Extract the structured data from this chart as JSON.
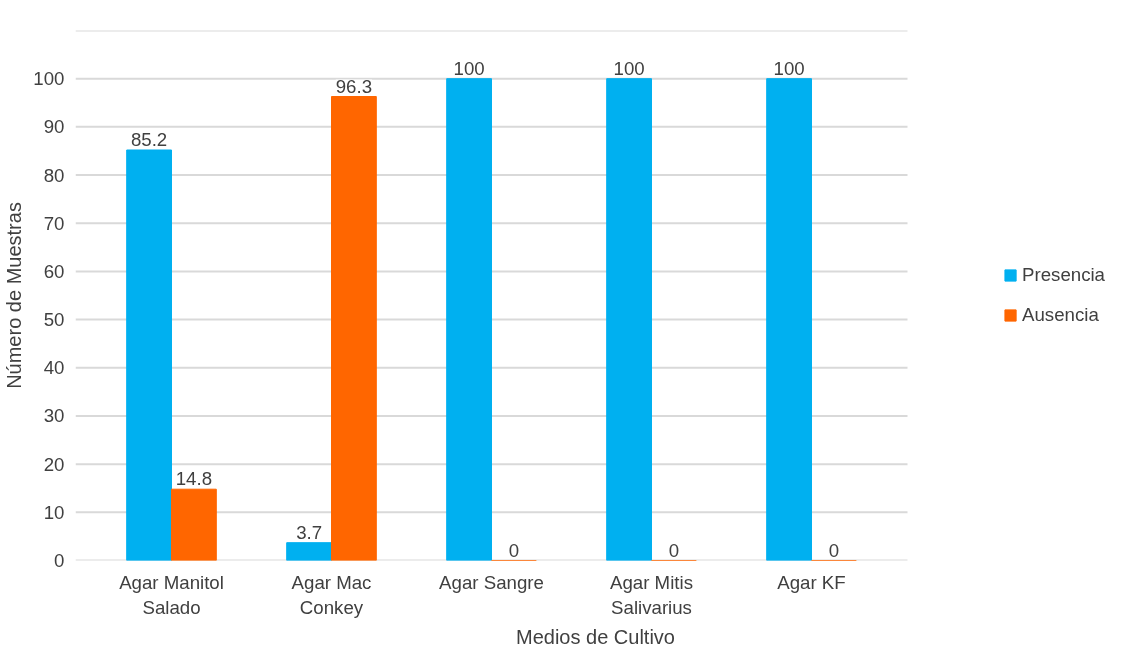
{
  "chart_data": {
    "type": "bar",
    "xlabel": "Medios de Cultivo",
    "ylabel": "Número de Muestras",
    "categories": [
      "Agar Manitol\nSalado",
      "Agar Mac\nConkey",
      "Agar Sangre",
      "Agar Mitis\nSalivarius",
      "Agar KF"
    ],
    "series": [
      {
        "name": "Presencia",
        "color": "#00b0f0",
        "values": [
          85.2,
          3.7,
          100,
          100,
          100
        ]
      },
      {
        "name": "Ausencia",
        "color": "#ff6600",
        "values": [
          14.8,
          96.3,
          0,
          0,
          0
        ]
      }
    ],
    "ylim": [
      0,
      110
    ],
    "yticks": [
      0,
      10,
      20,
      30,
      40,
      50,
      60,
      70,
      80,
      90,
      100,
      {
        "value": 110,
        "label": null
      }
    ],
    "grid": "y",
    "legend": "right",
    "data_labels": true
  }
}
